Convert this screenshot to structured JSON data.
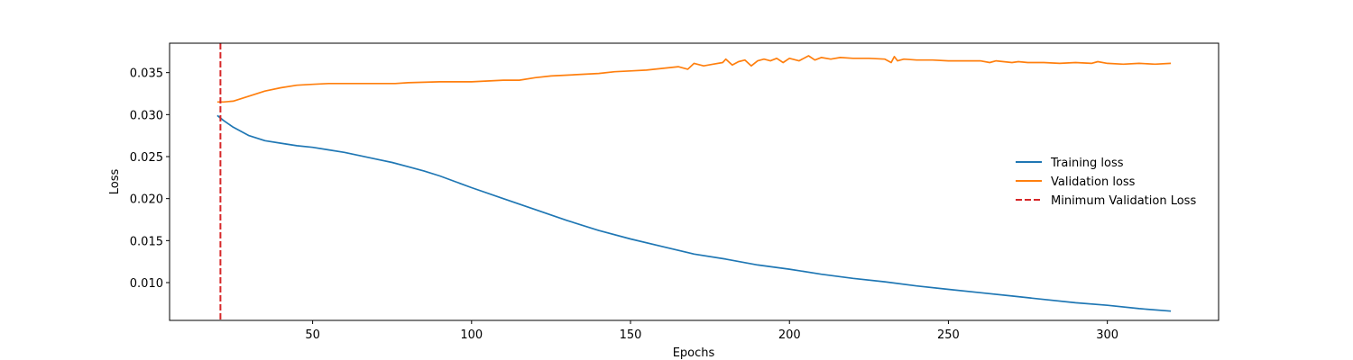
{
  "chart_data": {
    "type": "line",
    "title": "",
    "xlabel": "Epochs",
    "ylabel": "Loss",
    "xlim": [
      5,
      335
    ],
    "ylim": [
      0.0055,
      0.0385
    ],
    "xticks": [
      50,
      100,
      150,
      200,
      250,
      300
    ],
    "yticks": [
      0.01,
      0.015,
      0.02,
      0.025,
      0.03,
      0.035
    ],
    "xtick_labels": [
      "50",
      "100",
      "150",
      "200",
      "250",
      "300"
    ],
    "ytick_labels": [
      "0.010",
      "0.015",
      "0.020",
      "0.025",
      "0.030",
      "0.035"
    ],
    "grid": false,
    "legend_position": "center-right",
    "series": [
      {
        "name": "Training loss",
        "color": "#1f77b4",
        "style": "solid",
        "x": [
          20,
          22,
          25,
          30,
          35,
          40,
          45,
          50,
          55,
          60,
          65,
          70,
          75,
          80,
          85,
          90,
          95,
          100,
          110,
          120,
          130,
          140,
          150,
          160,
          170,
          180,
          190,
          200,
          210,
          220,
          230,
          240,
          250,
          260,
          270,
          280,
          290,
          300,
          310,
          320
        ],
        "y": [
          0.0299,
          0.0293,
          0.0285,
          0.0275,
          0.0269,
          0.0266,
          0.0263,
          0.0261,
          0.0258,
          0.0255,
          0.0251,
          0.0247,
          0.0243,
          0.0238,
          0.0233,
          0.0227,
          0.022,
          0.0213,
          0.02,
          0.0187,
          0.0174,
          0.0162,
          0.0152,
          0.0143,
          0.0134,
          0.0128,
          0.0121,
          0.0116,
          0.011,
          0.0105,
          0.0101,
          0.0096,
          0.0092,
          0.0088,
          0.0084,
          0.008,
          0.0076,
          0.0073,
          0.0069,
          0.0066
        ]
      },
      {
        "name": "Validation loss",
        "color": "#ff7f0e",
        "style": "solid",
        "x": [
          20,
          22,
          25,
          30,
          35,
          40,
          45,
          50,
          55,
          60,
          70,
          76,
          80,
          90,
          100,
          105,
          110,
          115,
          120,
          125,
          130,
          140,
          145,
          150,
          155,
          160,
          165,
          168,
          170,
          173,
          176,
          179,
          180,
          182,
          184,
          186,
          188,
          190,
          192,
          194,
          196,
          198,
          200,
          203,
          206,
          208,
          210,
          213,
          216,
          220,
          225,
          230,
          232,
          233,
          234,
          236,
          240,
          245,
          250,
          255,
          260,
          263,
          265,
          270,
          272,
          275,
          280,
          285,
          290,
          295,
          297,
          300,
          305,
          310,
          315,
          320
        ],
        "y": [
          0.0315,
          0.0315,
          0.0316,
          0.0322,
          0.0328,
          0.0332,
          0.0335,
          0.0336,
          0.0337,
          0.0337,
          0.0337,
          0.0337,
          0.0338,
          0.0339,
          0.0339,
          0.034,
          0.0341,
          0.0341,
          0.0344,
          0.0346,
          0.0347,
          0.0349,
          0.0351,
          0.0352,
          0.0353,
          0.0355,
          0.0357,
          0.0354,
          0.0361,
          0.0358,
          0.036,
          0.0362,
          0.0366,
          0.0359,
          0.0363,
          0.0365,
          0.0358,
          0.0364,
          0.0366,
          0.0364,
          0.0367,
          0.0362,
          0.0367,
          0.0364,
          0.037,
          0.0365,
          0.0368,
          0.0366,
          0.0368,
          0.0367,
          0.0367,
          0.0366,
          0.0362,
          0.0369,
          0.0364,
          0.0366,
          0.0365,
          0.0365,
          0.0364,
          0.0364,
          0.0364,
          0.0362,
          0.0364,
          0.0362,
          0.0363,
          0.0362,
          0.0362,
          0.0361,
          0.0362,
          0.0361,
          0.0363,
          0.0361,
          0.036,
          0.0361,
          0.036,
          0.0361
        ]
      },
      {
        "name": "Minimum Validation Loss",
        "color": "#d62728",
        "style": "dashed",
        "vline_x": 21
      }
    ]
  }
}
